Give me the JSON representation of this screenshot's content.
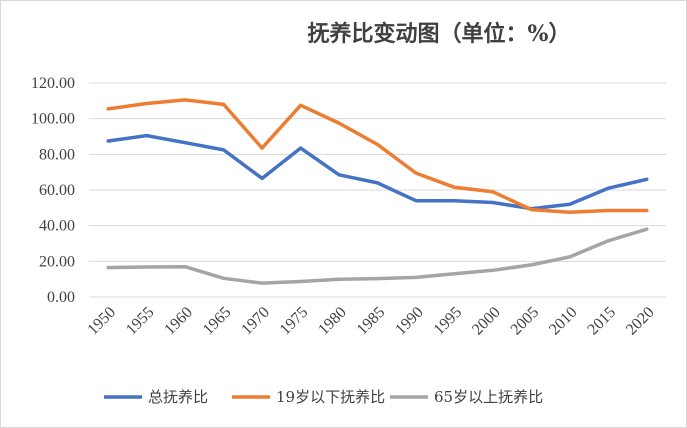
{
  "chart_data": {
    "type": "line",
    "title": "抚养比变动图（单位：%）",
    "xlabel": "",
    "ylabel": "",
    "x": [
      "1950",
      "1955",
      "1960",
      "1965",
      "1970",
      "1975",
      "1980",
      "1985",
      "1990",
      "1995",
      "2000",
      "2005",
      "2010",
      "2015",
      "2020"
    ],
    "ylim": [
      0,
      120
    ],
    "yticks": [
      "0.00",
      "20.00",
      "40.00",
      "60.00",
      "80.00",
      "100.00",
      "120.00"
    ],
    "grid": true,
    "legend_position": "bottom",
    "series": [
      {
        "name": "总抚养比",
        "color": "#4472c4",
        "values": [
          87.5,
          90.5,
          86.5,
          82.5,
          66.5,
          83.5,
          68.5,
          64.0,
          54.0,
          54.0,
          53.0,
          49.5,
          52.0,
          61.0,
          66.0
        ]
      },
      {
        "name": "19岁以下抚养比",
        "color": "#ed7d31",
        "values": [
          105.5,
          108.5,
          110.5,
          108.0,
          83.5,
          107.5,
          97.5,
          85.5,
          69.5,
          61.5,
          59.0,
          49.0,
          47.5,
          48.5,
          48.5
        ]
      },
      {
        "name": "65岁以上抚养比",
        "color": "#a5a5a5",
        "values": [
          16.5,
          16.8,
          17.0,
          10.5,
          7.8,
          8.7,
          10.0,
          10.3,
          11.0,
          13.0,
          15.0,
          18.0,
          22.5,
          31.5,
          38.0
        ]
      }
    ]
  }
}
